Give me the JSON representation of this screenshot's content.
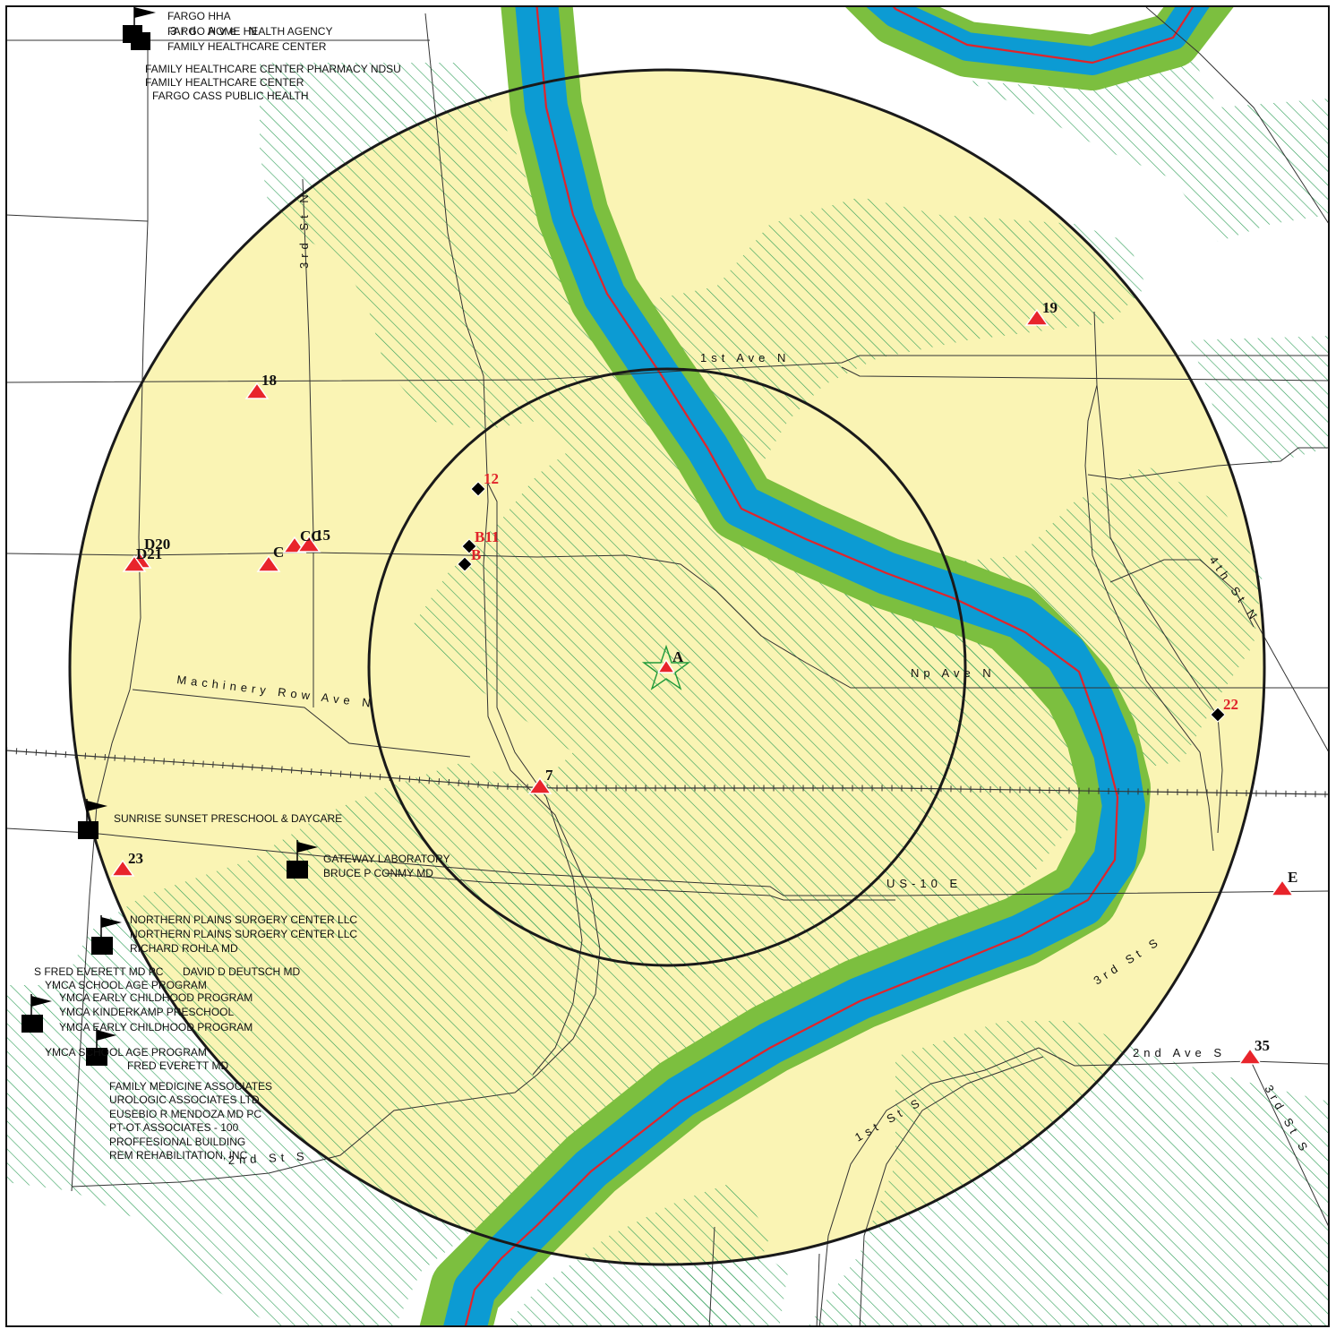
{
  "streets": {
    "ave_n_top": "3rd Ave N",
    "third_st_n": "3rd St N",
    "first_ave_n": "1st Ave N",
    "fourth_st_n": "4th St N",
    "np_ave_n": "Np Ave N",
    "machinery_row": "Machinery Row Ave N",
    "us10": "US-10 E",
    "third_st_s_right": "3rd St S",
    "second_ave_s": "2nd Ave S",
    "third_st_s_far": "3rd St S",
    "first_st_s": "1st St S",
    "second_st_s": "2nd St S"
  },
  "facilities": {
    "g1": [
      "FARGO HHA",
      "FARGO HOME HEALTH AGENCY",
      "FAMILY HEALTHCARE CENTER"
    ],
    "g1b": [
      "FAMILY HEALTHCARE CENTER PHARMACY NDSU",
      "FAMILY HEALTHCARE CENTER",
      "FARGO CASS PUBLIC HEALTH"
    ],
    "g2": [
      "SUNRISE SUNSET PRESCHOOL & DAYCARE"
    ],
    "g3": [
      "GATEWAY LABORATORY",
      "BRUCE P CONMY MD"
    ],
    "g4": [
      "NORTHERN PLAINS SURGERY CENTER LLC",
      "NORTHERN PLAINS SURGERY CENTER LLC",
      "RICHARD ROHLA MD"
    ],
    "g5": [
      "S FRED EVERETT MD PC",
      "DAVID D DEUTSCH MD"
    ],
    "g6": [
      "YMCA SCHOOL AGE PROGRAM",
      "YMCA EARLY CHILDHOOD PROGRAM",
      "YMCA KINDERKAMP PRESCHOOL",
      "YMCA EARLY CHILDHOOD PROGRAM"
    ],
    "g7": [
      "YMCA SCHOOL AGE PROGRAM",
      "FRED EVERETT MD"
    ],
    "g8": [
      "FAMILY MEDICINE ASSOCIATES",
      "UROLOGIC ASSOCIATES LTD",
      "EUSEBIO R MENDOZA MD PC",
      "PT-OT ASSOCIATES - 100",
      "PROFFESIONAL BUILDING",
      "REM REHABILITATION, INC"
    ]
  },
  "sites": {
    "a": "A",
    "s18": "18",
    "s19": "19",
    "d20": "D20",
    "d21": "D21",
    "c": "C",
    "cc": "CC",
    "s15": "15",
    "s7": "7",
    "s23": "23",
    "e": "E",
    "s35": "35",
    "s12": "12",
    "b11": "B11",
    "b": "B",
    "s22": "22"
  },
  "colors": {
    "buffer_fill": "#faf4b4",
    "hatch": "#2e9e58",
    "river": "#0c9bd3",
    "river_bank": "#7cbf3f",
    "river_centerline": "#e0242b",
    "site_marker": "#e8242b",
    "target_star": "#1f9a3a"
  },
  "icons": {
    "facility": "flag-icon",
    "site": "triangle-icon",
    "orphan": "diamond-icon",
    "target": "star-icon"
  }
}
